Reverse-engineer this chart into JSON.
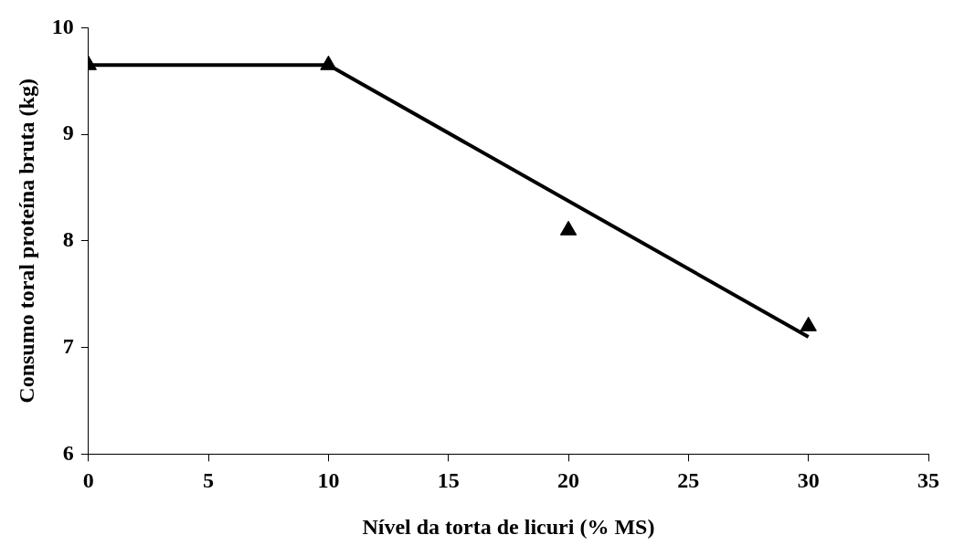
{
  "chart_data": {
    "type": "scatter",
    "xlabel": "Nível da torta de licuri (% MS)",
    "ylabel": "Consumo toral proteína bruta (kg)",
    "xlim": [
      0,
      35
    ],
    "xticks": [
      0,
      5,
      10,
      15,
      20,
      25,
      30,
      35
    ],
    "ylim": [
      6,
      10
    ],
    "yticks": [
      6,
      7,
      8,
      9,
      10
    ],
    "grid": false,
    "legend": false,
    "series": [
      {
        "type": "scatter",
        "color": "#000000",
        "marker": "triangle",
        "x": [
          0,
          10,
          20,
          30
        ],
        "values": [
          9.65,
          9.65,
          8.1,
          7.2
        ]
      },
      {
        "type": "line",
        "color": "#000000",
        "marker": "none",
        "line_style": "solid",
        "x": [
          0,
          10,
          30
        ],
        "values": [
          9.65,
          9.65,
          7.1
        ]
      }
    ]
  }
}
